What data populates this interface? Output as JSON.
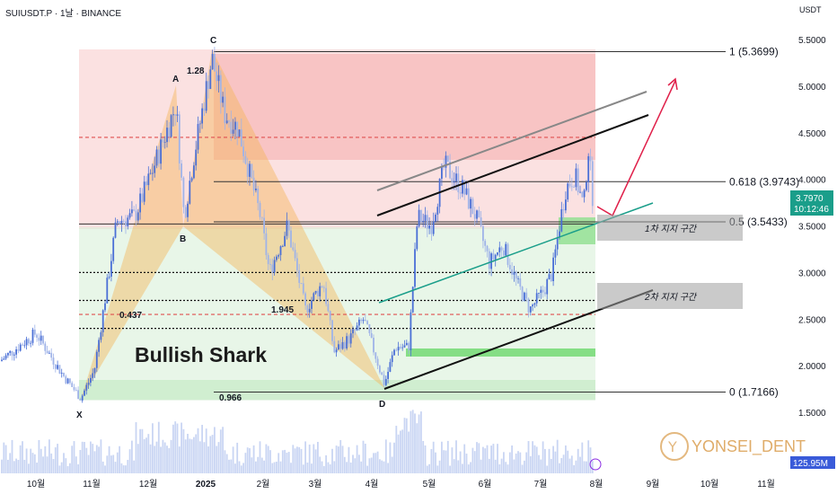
{
  "header": {
    "title": "SUIUSDT.P · 1날 · BINANCE",
    "currency": "USDT"
  },
  "chart_data": {
    "type": "candlestick",
    "symbol": "SUIUSDT.P",
    "ylim": [
      1.45,
      5.6
    ],
    "y_ticks": [
      5.5,
      5.0,
      4.5,
      4.0,
      3.5,
      3.0,
      2.5,
      2.0,
      1.5
    ],
    "y_tick_labels": [
      "5.5000",
      "5.0000",
      "4.5000",
      "4.0000",
      "3.5000",
      "3.0000",
      "2.5000",
      "2.0000",
      "1.5000"
    ],
    "x_ticks": [
      "10월",
      "11월",
      "12월",
      "2025",
      "2월",
      "3월",
      "4월",
      "5월",
      "6월",
      "7월",
      "8월",
      "9월",
      "10월",
      "11월"
    ],
    "current_price": "3.7970",
    "countdown": "10:12:46",
    "volume_label": "125.95M",
    "pattern_title": "Bullish Shark",
    "pattern_points": [
      {
        "name": "X",
        "price": 1.6
      },
      {
        "name": "A",
        "price": 4.85
      },
      {
        "name": "B",
        "price": 3.52
      },
      {
        "name": "C",
        "price": 5.37
      },
      {
        "name": "D",
        "price": 1.72
      }
    ],
    "ratios": [
      "1.28",
      "0.437",
      "1.945",
      "0.966"
    ],
    "fib_levels": [
      {
        "label": "1 (5.3699)",
        "price": 5.3699
      },
      {
        "label": "0.618 (3.9743)",
        "price": 3.9743
      },
      {
        "label": "0.5 (3.5433)",
        "price": 3.5433
      },
      {
        "label": "0 (1.7166)",
        "price": 1.7166
      }
    ],
    "zones": [
      {
        "label": "1차 지지 구간",
        "top": 3.62,
        "bottom": 3.35
      },
      {
        "label": "2차 지지 구간",
        "top": 2.85,
        "bottom": 2.6
      }
    ],
    "watermark": "YONSEI_DENT"
  }
}
